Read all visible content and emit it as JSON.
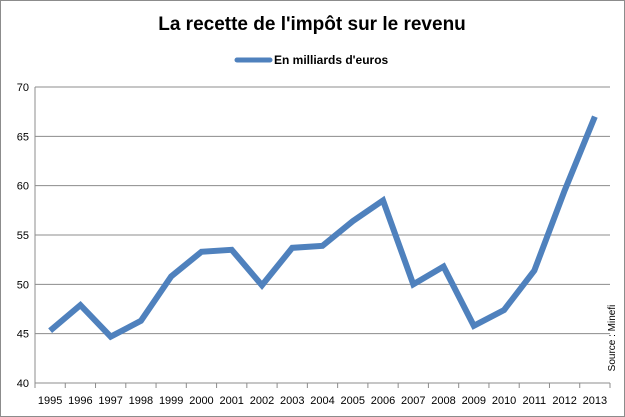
{
  "colors": {
    "series": "#4f81bd",
    "grid": "#8c8c8c",
    "axis": "#8c8c8c",
    "background": "#ffffff"
  },
  "chart_data": {
    "type": "line",
    "title": "La recette de l'impôt sur le revenu",
    "xlabel": "",
    "ylabel": "",
    "ylim": [
      40,
      70
    ],
    "yticks": [
      40,
      45,
      50,
      55,
      60,
      65,
      70
    ],
    "grid": true,
    "legend_position": "top-center",
    "source": "Source : Minefi",
    "categories": [
      "1995",
      "1996",
      "1997",
      "1998",
      "1999",
      "2000",
      "2001",
      "2002",
      "2003",
      "2004",
      "2005",
      "2006",
      "2007",
      "2008",
      "2009",
      "2010",
      "2011",
      "2012",
      "2013"
    ],
    "series": [
      {
        "name": "En milliards d'euros",
        "values": [
          45.3,
          47.9,
          44.7,
          46.3,
          50.8,
          53.3,
          53.5,
          49.9,
          53.7,
          53.9,
          56.4,
          58.5,
          50.0,
          51.8,
          45.8,
          47.4,
          51.4,
          59.5,
          67.0
        ]
      }
    ]
  }
}
